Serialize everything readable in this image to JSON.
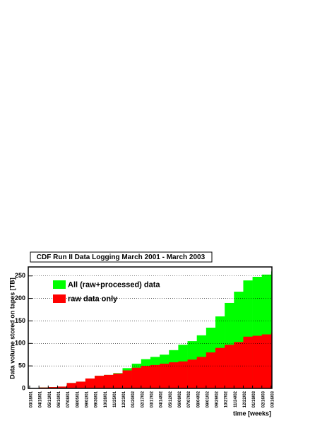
{
  "chart_data": {
    "type": "step_area",
    "title": "CDF Run II Data Logging March 2001 - March 2003",
    "y_label": "Data volume stored on tapes [TB]",
    "x_label": "time [weeks]",
    "categories": [
      "03/18/01",
      "04/15/01",
      "05/13/01",
      "06/10/01",
      "07/08/01",
      "08/05/01",
      "09/02/01",
      "09/30/01",
      "10/28/01",
      "11/25/01",
      "12/23/01",
      "01/20/02",
      "02/17/02",
      "03/17/02",
      "04/14/02",
      "05/12/02",
      "06/09/02",
      "07/07/02",
      "08/04/02",
      "09/01/02",
      "09/29/02",
      "10/27/02",
      "11/24/02",
      "12/22/02",
      "01/19/03",
      "02/16/03",
      "03/16/03"
    ],
    "series": [
      {
        "name": "All (raw+processed) data",
        "color": "#00ff00",
        "values": [
          0,
          2,
          3,
          4,
          12,
          15,
          22,
          28,
          30,
          34,
          45,
          55,
          65,
          70,
          75,
          85,
          97,
          105,
          118,
          135,
          160,
          190,
          215,
          240,
          248,
          253,
          260
        ]
      },
      {
        "name": "raw data only",
        "color": "#ff0000",
        "values": [
          0,
          2,
          3,
          4,
          12,
          15,
          22,
          28,
          30,
          33,
          40,
          46,
          50,
          52,
          55,
          58,
          60,
          64,
          70,
          80,
          90,
          97,
          103,
          115,
          117,
          120,
          124
        ]
      }
    ],
    "ylim": [
      0,
      270
    ],
    "yticks": [
      0,
      50,
      100,
      150,
      200,
      250
    ],
    "grid": true,
    "legend": "top-left"
  }
}
